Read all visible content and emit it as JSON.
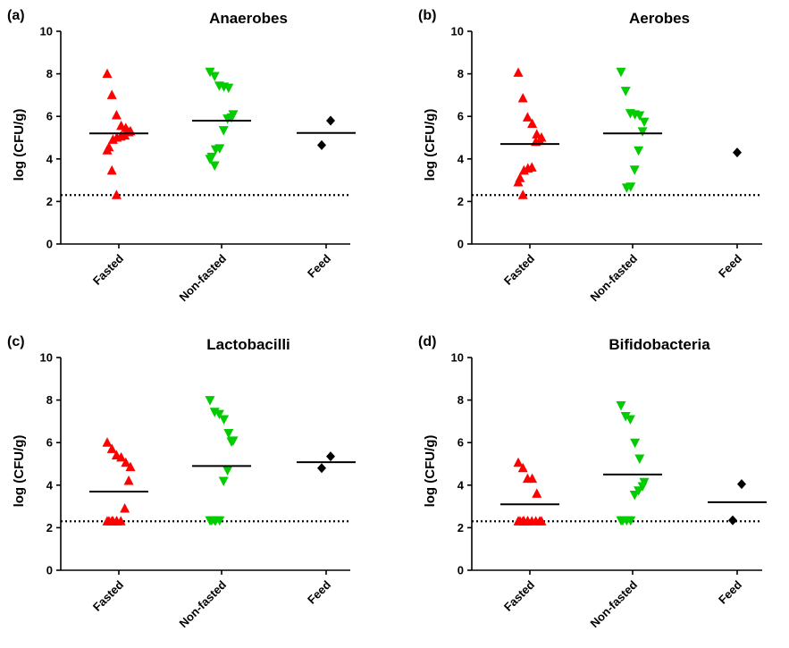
{
  "colors": {
    "fasted": "#ff0000",
    "non_fasted": "#00cc00",
    "feed": "#000000",
    "axis": "#000000"
  },
  "marker_shapes": {
    "fasted": "triangle-up",
    "non_fasted": "triangle-down",
    "feed": "diamond"
  },
  "chart_data": [
    {
      "type": "scatter",
      "panel_label": "(a)",
      "title": "Anaerobes",
      "ylabel": "log (CFU/g)",
      "ylim": [
        0,
        10
      ],
      "yticks": [
        0,
        2,
        4,
        6,
        8,
        10
      ],
      "categories": [
        "Fasted",
        "Non-fasted",
        "Feed"
      ],
      "detection_limit": 2.3,
      "series": [
        {
          "values": [
            8.0,
            7.0,
            6.05,
            5.55,
            5.45,
            5.3,
            5.25,
            5.1,
            5.05,
            5.0,
            4.9,
            4.55,
            4.4,
            3.45,
            2.3
          ],
          "mean": 5.2
        },
        {
          "values": [
            8.1,
            7.9,
            7.45,
            7.4,
            7.35,
            6.1,
            5.95,
            5.9,
            5.35,
            4.5,
            4.45,
            4.1,
            4.0,
            3.7
          ],
          "mean": 5.8
        },
        {
          "values": [
            5.8,
            4.65
          ],
          "mean": 5.22
        }
      ]
    },
    {
      "type": "scatter",
      "panel_label": "(b)",
      "title": "Aerobes",
      "ylabel": "log (CFU/g)",
      "ylim": [
        0,
        10
      ],
      "yticks": [
        0,
        2,
        4,
        6,
        8,
        10
      ],
      "categories": [
        "Fasted",
        "Non-fasted",
        "Feed"
      ],
      "detection_limit": 2.3,
      "series": [
        {
          "values": [
            8.05,
            6.85,
            5.95,
            5.65,
            5.15,
            5.0,
            4.85,
            4.8,
            3.6,
            3.55,
            3.45,
            3.1,
            2.9,
            2.3
          ],
          "mean": 4.7
        },
        {
          "values": [
            8.1,
            7.2,
            6.15,
            6.1,
            6.05,
            5.75,
            5.3,
            4.4,
            3.5,
            2.7,
            2.65
          ],
          "mean": 5.2
        },
        {
          "values": [
            4.3
          ],
          "mean": null
        }
      ]
    },
    {
      "type": "scatter",
      "panel_label": "(c)",
      "title": "Lactobacilli",
      "ylabel": "log (CFU/g)",
      "ylim": [
        0,
        10
      ],
      "yticks": [
        0,
        2,
        4,
        6,
        8,
        10
      ],
      "categories": [
        "Fasted",
        "Non-fasted",
        "Feed"
      ],
      "detection_limit": 2.3,
      "series": [
        {
          "values": [
            6.0,
            5.7,
            5.4,
            5.3,
            5.05,
            4.85,
            4.2,
            2.9,
            2.3,
            2.3,
            2.3,
            2.3,
            2.3,
            2.3,
            2.3
          ],
          "mean": 3.7
        },
        {
          "values": [
            8.0,
            7.45,
            7.35,
            7.1,
            6.45,
            6.1,
            6.05,
            4.7,
            4.2,
            2.35,
            2.35,
            2.35,
            2.35,
            2.35
          ],
          "mean": 4.9
        },
        {
          "values": [
            5.35,
            4.8
          ],
          "mean": 5.08
        }
      ]
    },
    {
      "type": "scatter",
      "panel_label": "(d)",
      "title": "Bifidobacteria",
      "ylabel": "log (CFU/g)",
      "ylim": [
        0,
        10
      ],
      "yticks": [
        0,
        2,
        4,
        6,
        8,
        10
      ],
      "categories": [
        "Fasted",
        "Non-fasted",
        "Feed"
      ],
      "detection_limit": 2.3,
      "series": [
        {
          "values": [
            5.05,
            4.8,
            4.3,
            4.3,
            3.6,
            2.3,
            2.3,
            2.3,
            2.3,
            2.3,
            2.3,
            2.3,
            2.3,
            2.3,
            2.3
          ],
          "mean": 3.1
        },
        {
          "values": [
            7.75,
            7.25,
            7.1,
            6.0,
            5.25,
            4.15,
            3.95,
            3.75,
            3.55,
            2.35,
            2.35,
            2.35,
            2.35
          ],
          "mean": 4.5
        },
        {
          "values": [
            4.05,
            2.35
          ],
          "mean": 3.2
        }
      ]
    }
  ]
}
